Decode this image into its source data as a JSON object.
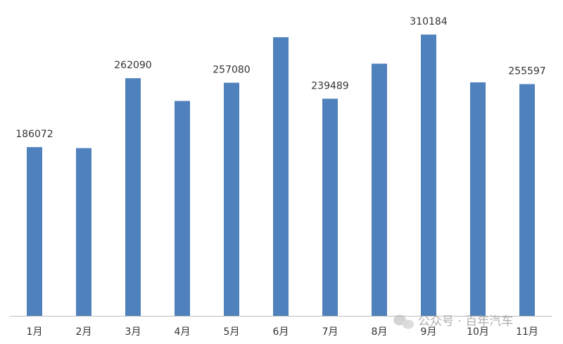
{
  "chart_data": {
    "type": "bar",
    "categories": [
      "1月",
      "2月",
      "3月",
      "4月",
      "5月",
      "6月",
      "7月",
      "8月",
      "9月",
      "10月",
      "11月"
    ],
    "values": [
      186072,
      185000,
      262090,
      237000,
      257080,
      307300,
      239489,
      278100,
      310184,
      257500,
      255597
    ],
    "show_labels": [
      true,
      false,
      true,
      false,
      true,
      false,
      true,
      false,
      true,
      false,
      true
    ],
    "color": "#4f81bd",
    "ylim": [
      0,
      346000
    ],
    "watermark": "公众号 · 百年汽车"
  }
}
